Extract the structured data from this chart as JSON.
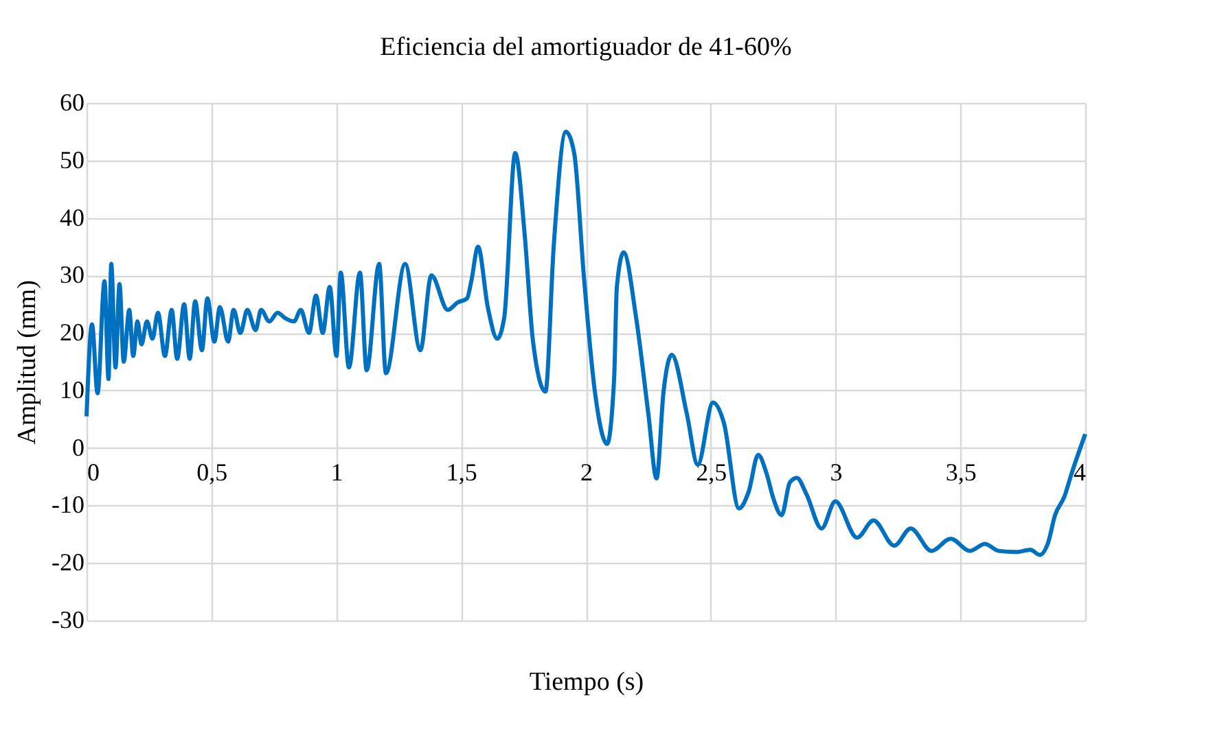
{
  "chart_data": {
    "type": "line",
    "title": "Eficiencia del amortiguador de 41-60%",
    "xlabel": "Tiempo (s)",
    "ylabel": "Amplitud (mm)",
    "xlim": [
      0,
      4
    ],
    "xticks": [
      0,
      {
        "value": 0.5,
        "label": "0,5"
      },
      1,
      {
        "value": 1.5,
        "label": "1,5"
      },
      2,
      {
        "value": 2.5,
        "label": "2,5"
      },
      3,
      {
        "value": 3.5,
        "label": "3,5"
      },
      4
    ],
    "ylim": [
      -30,
      60
    ],
    "yticks": [
      -30,
      -20,
      -10,
      0,
      10,
      20,
      30,
      40,
      50,
      60
    ],
    "grid": true,
    "line_style": "solid",
    "marker": "none",
    "series": [
      {
        "color": "#0070c0",
        "x": [
          0,
          0.022,
          0.044,
          0.072,
          0.088,
          0.099,
          0.116,
          0.132,
          0.149,
          0.171,
          0.187,
          0.204,
          0.22,
          0.242,
          0.264,
          0.286,
          0.314,
          0.341,
          0.363,
          0.391,
          0.413,
          0.435,
          0.462,
          0.484,
          0.512,
          0.534,
          0.567,
          0.589,
          0.616,
          0.644,
          0.677,
          0.699,
          0.732,
          0.765,
          0.798,
          0.831,
          0.858,
          0.891,
          0.919,
          0.946,
          0.974,
          1.001,
          1.018,
          1.051,
          1.095,
          1.122,
          1.172,
          1.199,
          1.276,
          1.337,
          1.381,
          1.447,
          1.486,
          1.524,
          1.541,
          1.568,
          1.607,
          1.645,
          1.673,
          1.717,
          1.755,
          1.788,
          1.838,
          1.871,
          1.92,
          1.953,
          1.992,
          2.036,
          2.085,
          2.113,
          2.124,
          2.151,
          2.201,
          2.25,
          2.283,
          2.311,
          2.344,
          2.404,
          2.448,
          2.509,
          2.553,
          2.613,
          2.652,
          2.69,
          2.724,
          2.751,
          2.784,
          2.817,
          2.845,
          2.883,
          2.944,
          2.999,
          3.086,
          3.152,
          3.235,
          3.301,
          3.384,
          3.461,
          3.538,
          3.598,
          3.653,
          3.725,
          3.78,
          3.818,
          3.851,
          3.879,
          3.917,
          3.945,
          4.0
        ],
        "values": [
          5.5,
          21.5,
          9.5,
          29,
          12,
          32,
          14,
          28.5,
          15,
          24,
          16,
          22,
          18,
          22,
          19,
          23.5,
          16,
          24,
          15.5,
          25,
          15.5,
          25.5,
          17,
          26,
          18.5,
          24.5,
          18.5,
          24,
          20,
          24,
          20.5,
          24,
          22,
          23.5,
          22.5,
          22,
          24,
          20,
          26.5,
          20,
          28,
          16,
          30.5,
          14,
          30.5,
          13.5,
          32,
          13,
          32,
          17,
          30,
          24,
          25.3,
          26,
          29,
          35,
          24.5,
          19,
          22.7,
          51.3,
          37,
          18.6,
          9.8,
          35,
          55,
          51.3,
          29.8,
          9.8,
          0.7,
          12,
          28,
          34,
          22.7,
          6,
          -5.3,
          9.8,
          16.2,
          6,
          -2.9,
          7.9,
          4.3,
          -10.5,
          -7.6,
          -1.2,
          -4.5,
          -8.8,
          -11.7,
          -6,
          -5.2,
          -8,
          -14,
          -9.3,
          -15.6,
          -12.6,
          -17,
          -14,
          -17.9,
          -15.8,
          -17.9,
          -16.7,
          -17.9,
          -18.1,
          -17.7,
          -18.6,
          -16.5,
          -11.7,
          -8.4,
          -4.5,
          2.4
        ]
      }
    ]
  }
}
